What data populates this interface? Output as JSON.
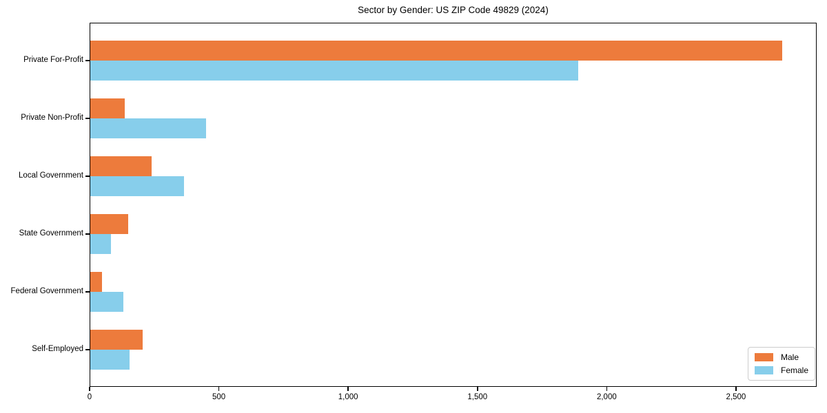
{
  "chart_data": {
    "type": "bar",
    "orientation": "horizontal",
    "title": "Sector by Gender: US ZIP Code 49829 (2024)",
    "categories": [
      "Private For-Profit",
      "Private Non-Profit",
      "Local Government",
      "State Government",
      "Federal Government",
      "Self-Employed"
    ],
    "series": [
      {
        "name": "Male",
        "color": "#ED7B3C",
        "values": [
          2680,
          135,
          240,
          150,
          48,
          205
        ]
      },
      {
        "name": "Female",
        "color": "#87CEEB",
        "values": [
          1890,
          450,
          365,
          82,
          130,
          155
        ]
      }
    ],
    "xlabel": "",
    "ylabel": "",
    "xlim": [
      0,
      2812
    ],
    "xticks": [
      0,
      500,
      1000,
      1500,
      2000,
      2500
    ],
    "xtick_labels": [
      "0",
      "500",
      "1,000",
      "1,500",
      "2,000",
      "2,500"
    ],
    "grid": false,
    "legend": {
      "position": "lower right",
      "entries": [
        "Male",
        "Female"
      ]
    }
  }
}
